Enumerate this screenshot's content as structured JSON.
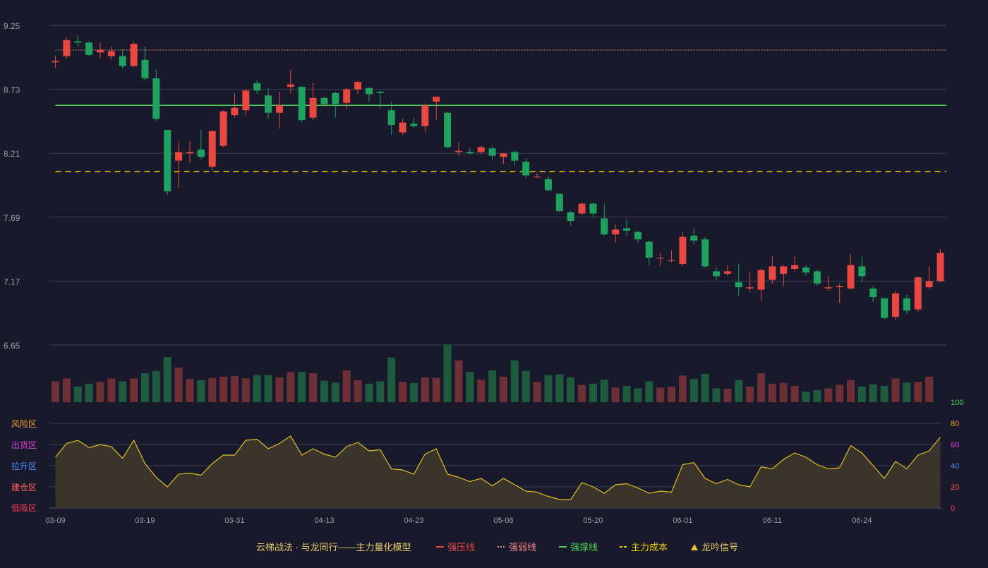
{
  "colors": {
    "background": "#181a2b",
    "grid": "#3a3d50",
    "up": "#e8483f",
    "down": "#1fa15f",
    "vol_up": "#6e2f36",
    "vol_down": "#1e5a40",
    "strong_pressure": "#e8483f",
    "strong_weak": "#f08a8a",
    "strong_support": "#4fcf5a",
    "main_cost": "#f0d000",
    "osc_line": "#e0c020",
    "osc_fill": "#3b342c",
    "axis_text": "#9a9ca8",
    "legend_title": "#e6c86a",
    "zone_risk": "#f0a030",
    "zone_ship": "#e040e0",
    "zone_rise": "#4a90ff",
    "zone_build": "#ff5a5a",
    "zone_low": "#ff3a5a"
  },
  "legend": {
    "title": "云梯战法 · 与龙同行——主力量化模型",
    "items": [
      {
        "label": "强压线",
        "color": "#e8483f",
        "style": "solid"
      },
      {
        "label": "强弱线",
        "color": "#f08a8a",
        "style": "dotted"
      },
      {
        "label": "强撑线",
        "color": "#4fcf5a",
        "style": "solid"
      },
      {
        "label": "主力成本",
        "color": "#f0d000",
        "style": "dashed"
      },
      {
        "label": "龙吟信号",
        "color": "#f0c040",
        "style": "triangle"
      }
    ]
  },
  "chart_data": [
    {
      "type": "candlestick",
      "title": "",
      "ylim": [
        6.65,
        9.25
      ],
      "y_ticks": [
        "9.25",
        "8.73",
        "8.21",
        "7.69",
        "7.17",
        "6.65"
      ],
      "x_tick_labels": [
        {
          "index": 0,
          "label": "03-09"
        },
        {
          "index": 8,
          "label": "03-19"
        },
        {
          "index": 16,
          "label": "03-31"
        },
        {
          "index": 24,
          "label": "04-13"
        },
        {
          "index": 32,
          "label": "04-23"
        },
        {
          "index": 40,
          "label": "05-08"
        },
        {
          "index": 48,
          "label": "05-20"
        },
        {
          "index": 56,
          "label": "06-01"
        },
        {
          "index": 64,
          "label": "06-11"
        },
        {
          "index": 72,
          "label": "06-24"
        }
      ],
      "horizontal_lines": [
        {
          "name": "强弱线",
          "value": 9.05
        },
        {
          "name": "强撑线",
          "value": 8.6
        },
        {
          "name": "主力成本",
          "value": 8.06
        }
      ],
      "candles": [
        [
          8.95,
          8.96,
          8.9,
          9.0
        ],
        [
          9.0,
          9.13,
          8.98,
          9.15
        ],
        [
          9.12,
          9.11,
          9.08,
          9.17
        ],
        [
          9.11,
          9.01,
          9.0,
          9.12
        ],
        [
          9.03,
          9.05,
          8.98,
          9.11
        ],
        [
          9.0,
          9.04,
          8.97,
          9.08
        ],
        [
          9.0,
          8.92,
          8.9,
          9.06
        ],
        [
          8.92,
          9.1,
          8.91,
          9.12
        ],
        [
          8.97,
          8.82,
          8.8,
          9.08
        ],
        [
          8.82,
          8.49,
          8.47,
          8.89
        ],
        [
          8.4,
          7.9,
          7.87,
          8.4
        ],
        [
          8.15,
          8.22,
          7.93,
          8.31
        ],
        [
          8.21,
          8.22,
          8.13,
          8.31
        ],
        [
          8.24,
          8.18,
          8.16,
          8.4
        ],
        [
          8.1,
          8.39,
          8.07,
          8.4
        ],
        [
          8.27,
          8.55,
          8.26,
          8.56
        ],
        [
          8.52,
          8.58,
          8.5,
          8.7
        ],
        [
          8.56,
          8.72,
          8.52,
          8.73
        ],
        [
          8.78,
          8.72,
          8.69,
          8.8
        ],
        [
          8.68,
          8.54,
          8.49,
          8.74
        ],
        [
          8.54,
          8.6,
          8.41,
          8.71
        ],
        [
          8.75,
          8.77,
          8.7,
          8.89
        ],
        [
          8.75,
          8.48,
          8.46,
          8.76
        ],
        [
          8.5,
          8.66,
          8.48,
          8.78
        ],
        [
          8.66,
          8.61,
          8.6,
          8.67
        ],
        [
          8.7,
          8.61,
          8.5,
          8.71
        ],
        [
          8.62,
          8.73,
          8.57,
          8.74
        ],
        [
          8.73,
          8.79,
          8.69,
          8.8
        ],
        [
          8.74,
          8.69,
          8.63,
          8.75
        ],
        [
          8.71,
          8.7,
          8.58,
          8.72
        ],
        [
          8.56,
          8.44,
          8.36,
          8.63
        ],
        [
          8.38,
          8.46,
          8.36,
          8.49
        ],
        [
          8.45,
          8.43,
          8.41,
          8.5
        ],
        [
          8.43,
          8.6,
          8.38,
          8.61
        ],
        [
          8.63,
          8.67,
          8.48,
          8.67
        ],
        [
          8.54,
          8.26,
          8.25,
          8.55
        ],
        [
          8.22,
          8.23,
          8.19,
          8.3
        ],
        [
          8.22,
          8.21,
          8.2,
          8.25
        ],
        [
          8.22,
          8.26,
          8.2,
          8.27
        ],
        [
          8.25,
          8.19,
          8.16,
          8.27
        ],
        [
          8.18,
          8.21,
          8.12,
          8.21
        ],
        [
          8.22,
          8.15,
          8.11,
          8.23
        ],
        [
          8.14,
          8.03,
          8.01,
          8.17
        ],
        [
          8.02,
          8.02,
          8.01,
          8.05
        ],
        [
          8.0,
          7.91,
          7.9,
          8.02
        ],
        [
          7.88,
          7.74,
          7.73,
          7.88
        ],
        [
          7.73,
          7.66,
          7.62,
          7.74
        ],
        [
          7.72,
          7.8,
          7.71,
          7.81
        ],
        [
          7.8,
          7.72,
          7.69,
          7.81
        ],
        [
          7.68,
          7.55,
          7.54,
          7.8
        ],
        [
          7.55,
          7.59,
          7.48,
          7.63
        ],
        [
          7.6,
          7.58,
          7.54,
          7.67
        ],
        [
          7.57,
          7.51,
          7.48,
          7.58
        ],
        [
          7.49,
          7.36,
          7.3,
          7.5
        ],
        [
          7.36,
          7.36,
          7.29,
          7.4
        ],
        [
          7.34,
          7.34,
          7.32,
          7.42
        ],
        [
          7.31,
          7.53,
          7.29,
          7.57
        ],
        [
          7.54,
          7.5,
          7.47,
          7.6
        ],
        [
          7.51,
          7.29,
          7.28,
          7.53
        ],
        [
          7.25,
          7.21,
          7.18,
          7.28
        ],
        [
          7.23,
          7.25,
          7.21,
          7.3
        ],
        [
          7.16,
          7.12,
          7.05,
          7.31
        ],
        [
          7.11,
          7.12,
          7.08,
          7.25
        ],
        [
          7.1,
          7.26,
          7.01,
          7.27
        ],
        [
          7.18,
          7.29,
          7.15,
          7.37
        ],
        [
          7.23,
          7.29,
          7.13,
          7.3
        ],
        [
          7.27,
          7.3,
          7.25,
          7.37
        ],
        [
          7.28,
          7.24,
          7.21,
          7.3
        ],
        [
          7.25,
          7.15,
          7.13,
          7.26
        ],
        [
          7.11,
          7.12,
          7.09,
          7.21
        ],
        [
          7.12,
          7.13,
          6.99,
          7.15
        ],
        [
          7.11,
          7.3,
          7.1,
          7.39
        ],
        [
          7.29,
          7.21,
          7.16,
          7.37
        ],
        [
          7.11,
          7.04,
          7.0,
          7.13
        ],
        [
          7.03,
          6.87,
          6.86,
          7.03
        ],
        [
          6.88,
          7.07,
          6.85,
          7.09
        ],
        [
          7.03,
          6.93,
          6.9,
          7.06
        ],
        [
          6.94,
          7.2,
          6.92,
          7.21
        ],
        [
          7.12,
          7.17,
          7.1,
          7.29
        ],
        [
          7.17,
          7.4,
          7.16,
          7.43
        ]
      ]
    },
    {
      "type": "bar",
      "title": "volume",
      "values": [
        36,
        41,
        27,
        32,
        35,
        41,
        36,
        41,
        50,
        54,
        78,
        60,
        40,
        38,
        42,
        44,
        45,
        41,
        47,
        47,
        43,
        52,
        52,
        50,
        37,
        34,
        55,
        38,
        32,
        36,
        77,
        35,
        33,
        43,
        42,
        100,
        72,
        52,
        39,
        55,
        44,
        72,
        54,
        35,
        47,
        48,
        43,
        30,
        32,
        39,
        25,
        28,
        24,
        36,
        25,
        27,
        46,
        40,
        49,
        24,
        23,
        38,
        27,
        50,
        32,
        33,
        28,
        18,
        21,
        24,
        30,
        38,
        27,
        31,
        28,
        41,
        34,
        35,
        44
      ]
    },
    {
      "type": "area",
      "title": "oscillator",
      "ylim": [
        0,
        100
      ],
      "y_ticks": [
        "0",
        "20",
        "40",
        "60",
        "80",
        "100"
      ],
      "zones": [
        {
          "label": "风险区",
          "value": 80
        },
        {
          "label": "出货区",
          "value": 60
        },
        {
          "label": "拉升区",
          "value": 40
        },
        {
          "label": "建仓区",
          "value": 20
        },
        {
          "label": "低吸区",
          "value": 0
        }
      ],
      "values": [
        48,
        61,
        64,
        57,
        60,
        58,
        47,
        64,
        42,
        29,
        20,
        32,
        33,
        31,
        42,
        50,
        50,
        64,
        65,
        56,
        61,
        68,
        50,
        56,
        51,
        48,
        58,
        62,
        54,
        55,
        37,
        36,
        32,
        51,
        56,
        32,
        29,
        25,
        28,
        21,
        28,
        22,
        16,
        15,
        11,
        8,
        8,
        24,
        20,
        14,
        22,
        23,
        19,
        14,
        16,
        15,
        41,
        43,
        28,
        23,
        27,
        22,
        20,
        39,
        37,
        46,
        52,
        48,
        41,
        37,
        38,
        59,
        52,
        40,
        28,
        44,
        37,
        50,
        54,
        67
      ]
    }
  ]
}
